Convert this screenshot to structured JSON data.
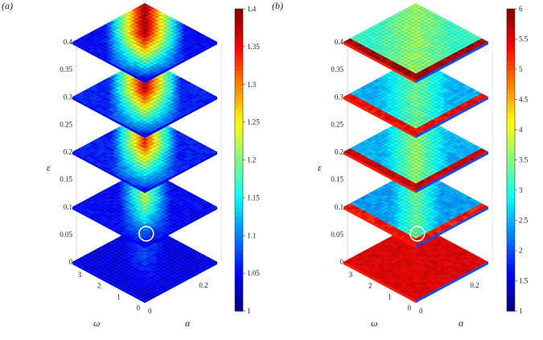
{
  "chart_data": [
    {
      "type": "heatmap",
      "panel_label": "(a)",
      "chart_kind": "stacked 3D surface slices",
      "x": {
        "label": "α",
        "ticks": [
          "0",
          "0.2"
        ],
        "range": [
          0,
          0.3
        ]
      },
      "y": {
        "label": "ω",
        "ticks": [
          "0",
          "1",
          "2",
          "3"
        ],
        "range": [
          0,
          3.5
        ]
      },
      "z": {
        "label": "ε",
        "ticks": [
          "0",
          "0.05",
          "0.1",
          "0.15",
          "0.2",
          "0.25",
          "0.3",
          "0.35",
          "0.4"
        ],
        "range": [
          0,
          0.4
        ]
      },
      "slices_eps": [
        0,
        0.1,
        0.2,
        0.3,
        0.4
      ],
      "colorbar": {
        "min": 1,
        "max": 1.4,
        "ticks": [
          "1",
          "1.05",
          "1.1",
          "1.15",
          "1.2",
          "1.25",
          "1.3",
          "1.35",
          "1.4"
        ]
      },
      "grid_size": 22,
      "slice_patterns": [
        {
          "eps": 0,
          "base": 1.04,
          "peak": 1.07,
          "wedge_spread": 0.3,
          "floor": 1.02
        },
        {
          "eps": 0.1,
          "base": 1.05,
          "peak": 1.22,
          "wedge_spread": 0.35,
          "floor": 1.03
        },
        {
          "eps": 0.2,
          "base": 1.06,
          "peak": 1.33,
          "wedge_spread": 0.45,
          "floor": 1.04
        },
        {
          "eps": 0.3,
          "base": 1.06,
          "peak": 1.37,
          "wedge_spread": 0.5,
          "floor": 1.04
        },
        {
          "eps": 0.4,
          "base": 1.05,
          "peak": 1.38,
          "wedge_spread": 0.55,
          "floor": 1.03
        }
      ],
      "marker": {
        "shape": "circle",
        "slice_eps": 0.1,
        "alpha": 0.0,
        "omega": 0.45
      }
    },
    {
      "type": "heatmap",
      "panel_label": "(b)",
      "chart_kind": "stacked 3D surface slices",
      "x": {
        "label": "α",
        "ticks": [
          "0",
          "0.2"
        ],
        "range": [
          0,
          0.3
        ]
      },
      "y": {
        "label": "ω",
        "ticks": [
          "0",
          "1",
          "2",
          "3"
        ],
        "range": [
          0,
          3.5
        ]
      },
      "z": {
        "label": "ε",
        "ticks": [
          "0",
          "0.05",
          "0.1",
          "0.15",
          "0.2",
          "0.25",
          "0.3",
          "0.35",
          "0.4"
        ],
        "range": [
          0,
          0.4
        ]
      },
      "slices_eps": [
        0,
        0.1,
        0.2,
        0.3,
        0.4
      ],
      "colorbar": {
        "min": 1,
        "max": 6,
        "ticks": [
          "1",
          "1.5",
          "2",
          "2.5",
          "3",
          "3.5",
          "4",
          "4.5",
          "5",
          "5.5",
          "6"
        ]
      },
      "grid_size": 22,
      "slice_patterns": [
        {
          "eps": 0,
          "base": 5.4,
          "peak": 5.6,
          "wedge_spread": 0.0,
          "floor": 5.2
        },
        {
          "eps": 0.1,
          "base": 2.3,
          "peak": 3.3,
          "wedge_spread": 0.35,
          "edge": 5.5
        },
        {
          "eps": 0.2,
          "base": 2.4,
          "peak": 3.5,
          "wedge_spread": 0.45,
          "edge": 5.8
        },
        {
          "eps": 0.3,
          "base": 2.4,
          "peak": 3.3,
          "wedge_spread": 0.5,
          "edge": 5.6
        },
        {
          "eps": 0.4,
          "base": 3.0,
          "peak": 3.5,
          "wedge_spread": 0.55,
          "edge": 6.0
        }
      ],
      "marker": {
        "shape": "circle",
        "slice_eps": 0.1,
        "alpha": 0.0,
        "omega": 0.45
      }
    }
  ]
}
